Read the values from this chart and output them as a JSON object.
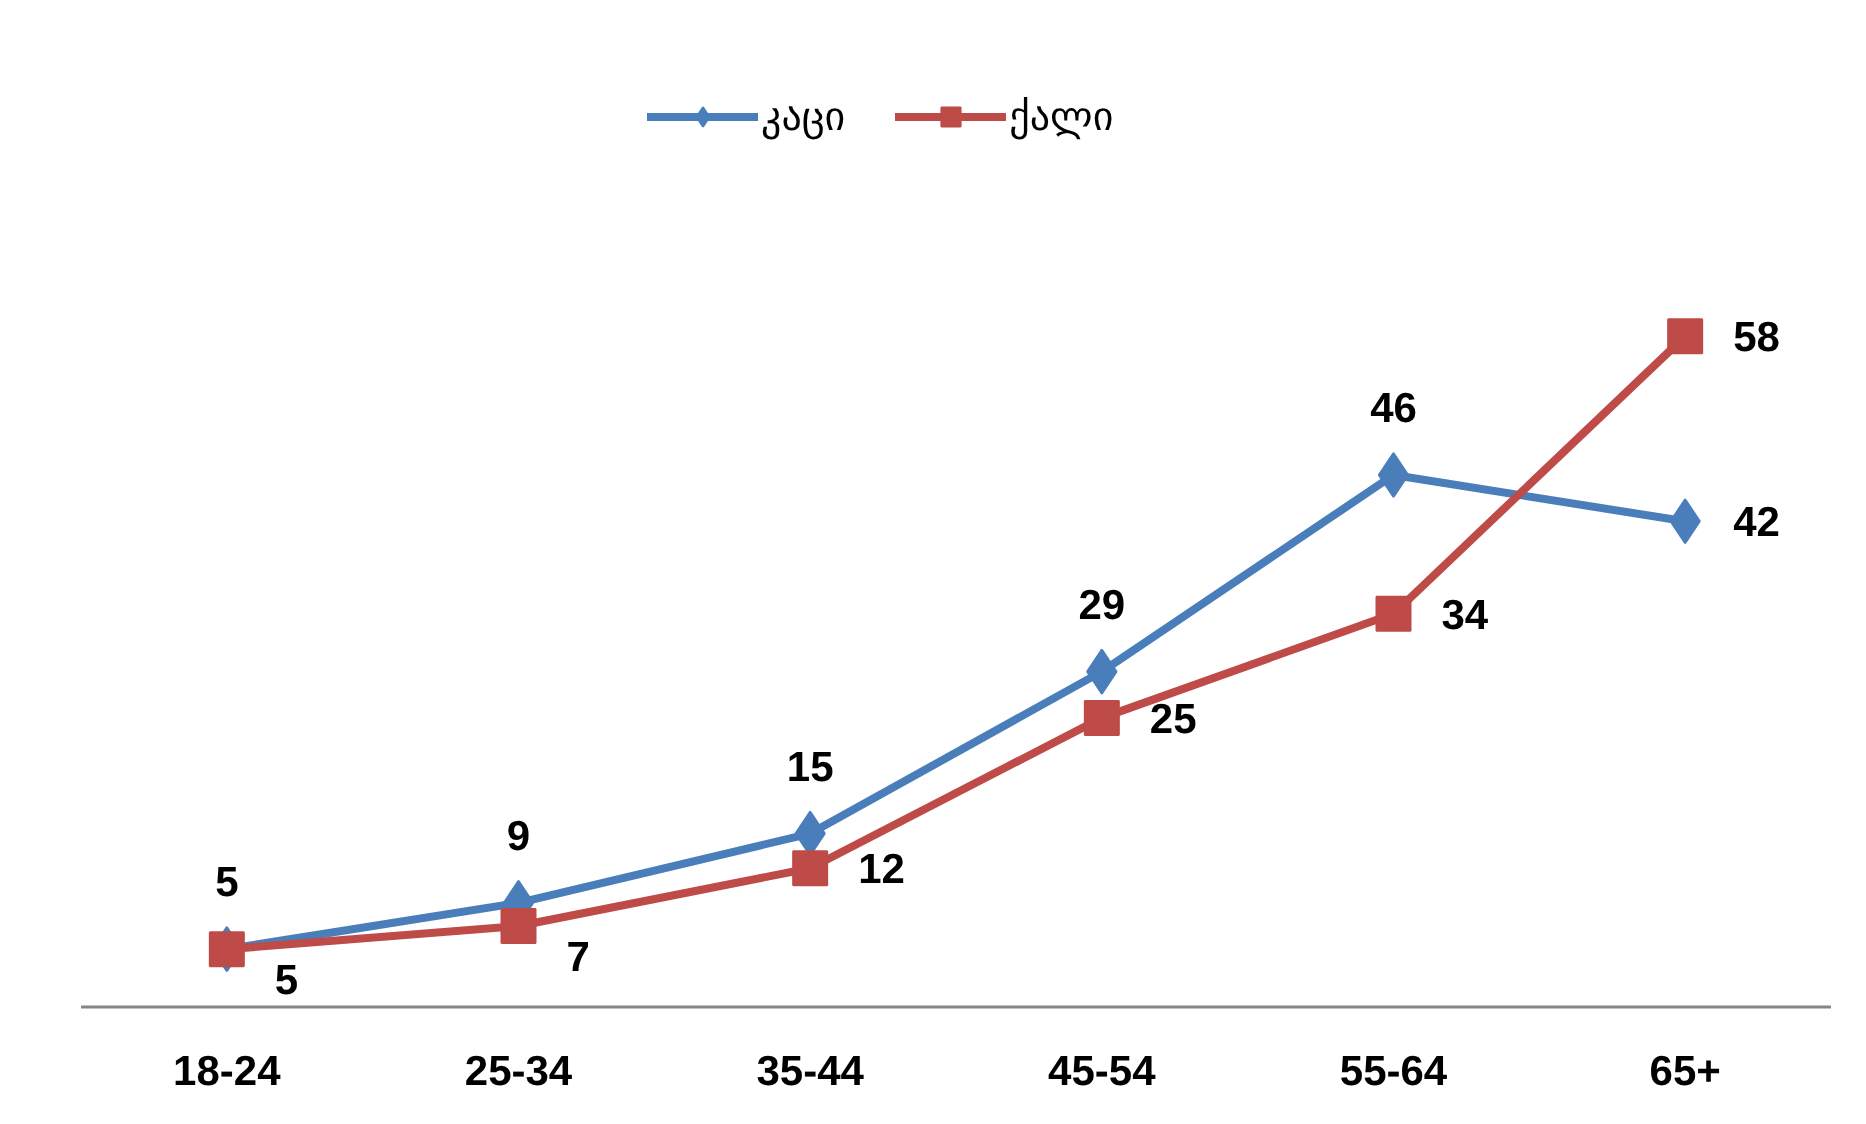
{
  "chart_data": {
    "type": "line",
    "categories": [
      "18-24",
      "25-34",
      "35-44",
      "45-54",
      "55-64",
      "65+"
    ],
    "series": [
      {
        "name": "კაცი",
        "color": "#4a7ebb",
        "marker": "diamond",
        "values": [
          5,
          9,
          15,
          29,
          46,
          42
        ]
      },
      {
        "name": "ქალი",
        "color": "#be4b48",
        "marker": "square",
        "values": [
          5,
          7,
          12,
          25,
          34,
          58
        ]
      }
    ],
    "data_labels": true,
    "legend": "top",
    "tick_labels": "x",
    "grid": false
  }
}
